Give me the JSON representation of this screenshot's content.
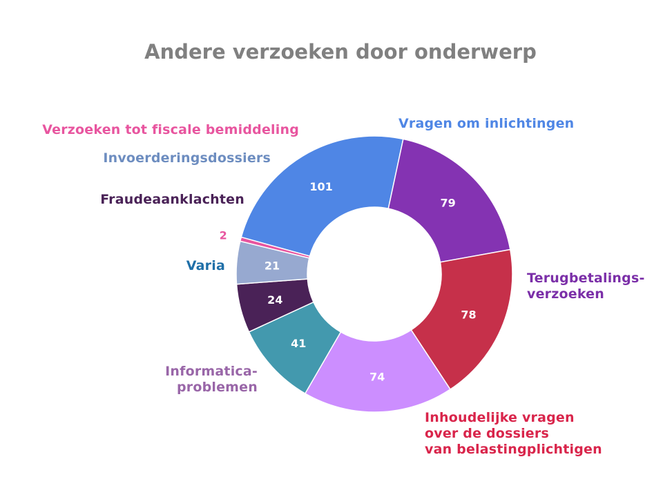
{
  "chart_data": {
    "type": "pie",
    "title": "Andere verzoeken door onderwerp",
    "donut": true,
    "categories": [
      [
        "Vragen om inlichtingen"
      ],
      [
        "Terugbetalings-",
        "verzoeken"
      ],
      [
        "Inhoudelijke vragen",
        "over de dossiers",
        "van belastingplichtigen"
      ],
      [
        "Informatica-",
        "problemen"
      ],
      [
        "Varia"
      ],
      [
        "Fraudeaanklachten"
      ],
      [
        "Invoerderingsdossiers"
      ],
      [
        "Verzoeken tot fiscale bemiddeling"
      ]
    ],
    "values": [
      101,
      79,
      78,
      74,
      41,
      24,
      21,
      2
    ],
    "value_labels": [
      "101",
      "79",
      "78",
      "74",
      "41",
      "24",
      "21",
      "2"
    ],
    "colors": [
      "#4F86E5",
      "#8433B2",
      "#C6304A",
      "#CC8EFF",
      "#4399AE",
      "#4A2257",
      "#97A9D0",
      "#E8559F"
    ],
    "label_colors": [
      "#4F86E5",
      "#7B2FA8",
      "#D9254B",
      "#9966A8",
      "#1F6FA8",
      "#4A2257",
      "#6D8DC0",
      "#E8559F"
    ],
    "legend": "none"
  }
}
